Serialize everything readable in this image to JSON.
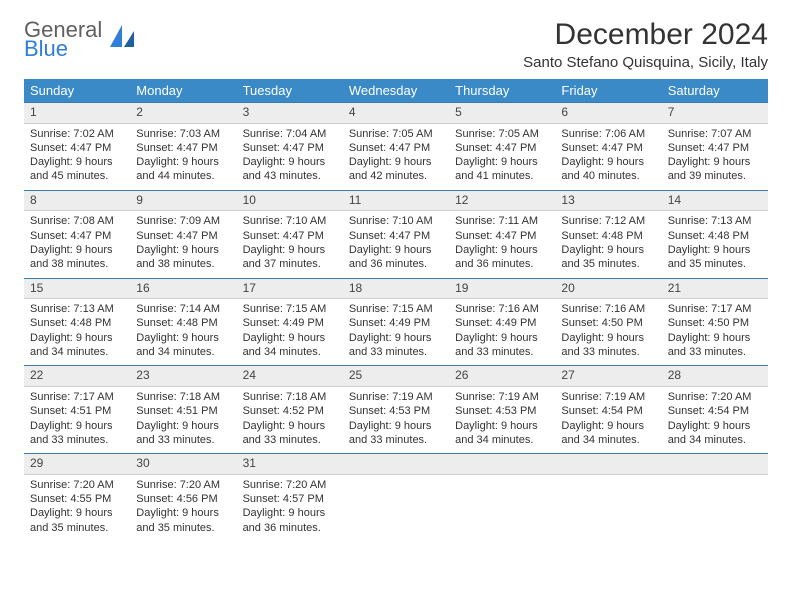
{
  "logo": {
    "line1": "General",
    "line2": "Blue"
  },
  "title": "December 2024",
  "location": "Santo Stefano Quisquina, Sicily, Italy",
  "day_headers": [
    "Sunday",
    "Monday",
    "Tuesday",
    "Wednesday",
    "Thursday",
    "Friday",
    "Saturday"
  ],
  "header_bg": "#3a8ac8",
  "daynum_bg": "#ededed",
  "rule_color": "#3a7aa8",
  "weeks": [
    [
      {
        "n": "1",
        "sr": "7:02 AM",
        "ss": "4:47 PM",
        "dl": "9 hours and 45 minutes."
      },
      {
        "n": "2",
        "sr": "7:03 AM",
        "ss": "4:47 PM",
        "dl": "9 hours and 44 minutes."
      },
      {
        "n": "3",
        "sr": "7:04 AM",
        "ss": "4:47 PM",
        "dl": "9 hours and 43 minutes."
      },
      {
        "n": "4",
        "sr": "7:05 AM",
        "ss": "4:47 PM",
        "dl": "9 hours and 42 minutes."
      },
      {
        "n": "5",
        "sr": "7:05 AM",
        "ss": "4:47 PM",
        "dl": "9 hours and 41 minutes."
      },
      {
        "n": "6",
        "sr": "7:06 AM",
        "ss": "4:47 PM",
        "dl": "9 hours and 40 minutes."
      },
      {
        "n": "7",
        "sr": "7:07 AM",
        "ss": "4:47 PM",
        "dl": "9 hours and 39 minutes."
      }
    ],
    [
      {
        "n": "8",
        "sr": "7:08 AM",
        "ss": "4:47 PM",
        "dl": "9 hours and 38 minutes."
      },
      {
        "n": "9",
        "sr": "7:09 AM",
        "ss": "4:47 PM",
        "dl": "9 hours and 38 minutes."
      },
      {
        "n": "10",
        "sr": "7:10 AM",
        "ss": "4:47 PM",
        "dl": "9 hours and 37 minutes."
      },
      {
        "n": "11",
        "sr": "7:10 AM",
        "ss": "4:47 PM",
        "dl": "9 hours and 36 minutes."
      },
      {
        "n": "12",
        "sr": "7:11 AM",
        "ss": "4:47 PM",
        "dl": "9 hours and 36 minutes."
      },
      {
        "n": "13",
        "sr": "7:12 AM",
        "ss": "4:48 PM",
        "dl": "9 hours and 35 minutes."
      },
      {
        "n": "14",
        "sr": "7:13 AM",
        "ss": "4:48 PM",
        "dl": "9 hours and 35 minutes."
      }
    ],
    [
      {
        "n": "15",
        "sr": "7:13 AM",
        "ss": "4:48 PM",
        "dl": "9 hours and 34 minutes."
      },
      {
        "n": "16",
        "sr": "7:14 AM",
        "ss": "4:48 PM",
        "dl": "9 hours and 34 minutes."
      },
      {
        "n": "17",
        "sr": "7:15 AM",
        "ss": "4:49 PM",
        "dl": "9 hours and 34 minutes."
      },
      {
        "n": "18",
        "sr": "7:15 AM",
        "ss": "4:49 PM",
        "dl": "9 hours and 33 minutes."
      },
      {
        "n": "19",
        "sr": "7:16 AM",
        "ss": "4:49 PM",
        "dl": "9 hours and 33 minutes."
      },
      {
        "n": "20",
        "sr": "7:16 AM",
        "ss": "4:50 PM",
        "dl": "9 hours and 33 minutes."
      },
      {
        "n": "21",
        "sr": "7:17 AM",
        "ss": "4:50 PM",
        "dl": "9 hours and 33 minutes."
      }
    ],
    [
      {
        "n": "22",
        "sr": "7:17 AM",
        "ss": "4:51 PM",
        "dl": "9 hours and 33 minutes."
      },
      {
        "n": "23",
        "sr": "7:18 AM",
        "ss": "4:51 PM",
        "dl": "9 hours and 33 minutes."
      },
      {
        "n": "24",
        "sr": "7:18 AM",
        "ss": "4:52 PM",
        "dl": "9 hours and 33 minutes."
      },
      {
        "n": "25",
        "sr": "7:19 AM",
        "ss": "4:53 PM",
        "dl": "9 hours and 33 minutes."
      },
      {
        "n": "26",
        "sr": "7:19 AM",
        "ss": "4:53 PM",
        "dl": "9 hours and 34 minutes."
      },
      {
        "n": "27",
        "sr": "7:19 AM",
        "ss": "4:54 PM",
        "dl": "9 hours and 34 minutes."
      },
      {
        "n": "28",
        "sr": "7:20 AM",
        "ss": "4:54 PM",
        "dl": "9 hours and 34 minutes."
      }
    ],
    [
      {
        "n": "29",
        "sr": "7:20 AM",
        "ss": "4:55 PM",
        "dl": "9 hours and 35 minutes."
      },
      {
        "n": "30",
        "sr": "7:20 AM",
        "ss": "4:56 PM",
        "dl": "9 hours and 35 minutes."
      },
      {
        "n": "31",
        "sr": "7:20 AM",
        "ss": "4:57 PM",
        "dl": "9 hours and 36 minutes."
      },
      {
        "empty": true
      },
      {
        "empty": true
      },
      {
        "empty": true
      },
      {
        "empty": true
      }
    ]
  ],
  "labels": {
    "sunrise": "Sunrise:",
    "sunset": "Sunset:",
    "daylight": "Daylight:"
  }
}
